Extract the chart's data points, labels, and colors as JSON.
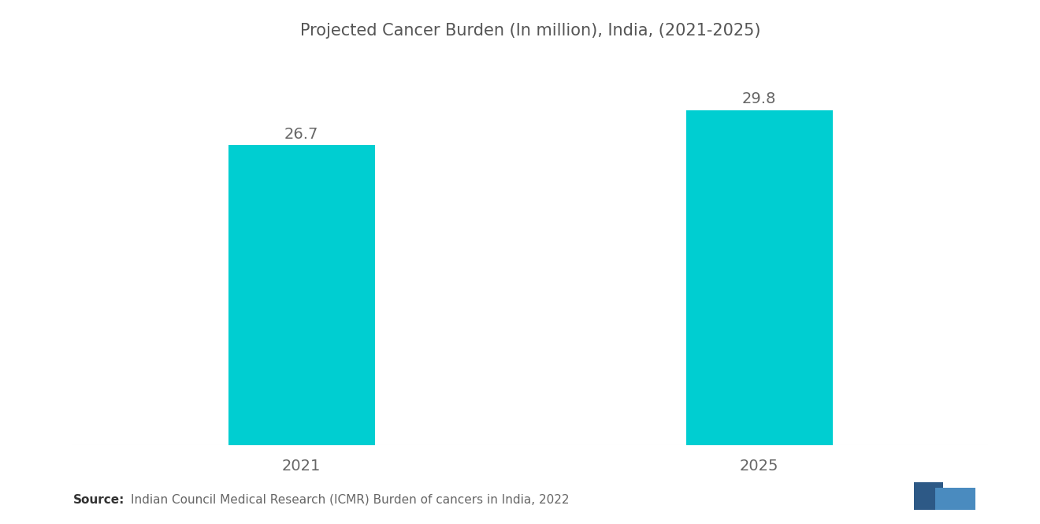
{
  "title": "Projected Cancer Burden (In million), India, (2021-2025)",
  "categories": [
    "2021",
    "2025"
  ],
  "values": [
    26.7,
    29.8
  ],
  "bar_color": "#00CED1",
  "bar_width": 0.32,
  "bar_positions": [
    1,
    2
  ],
  "xlim": [
    0.5,
    2.5
  ],
  "ylim": [
    0,
    34
  ],
  "value_labels": [
    "26.7",
    "29.8"
  ],
  "value_fontsize": 14,
  "xtick_fontsize": 14,
  "title_fontsize": 15,
  "background_color": "#ffffff",
  "source_bold": "Source:",
  "source_text": "Indian Council Medical Research (ICMR) Burden of cancers in India, 2022",
  "source_fontsize": 11,
  "label_color": "#666666",
  "title_color": "#555555"
}
